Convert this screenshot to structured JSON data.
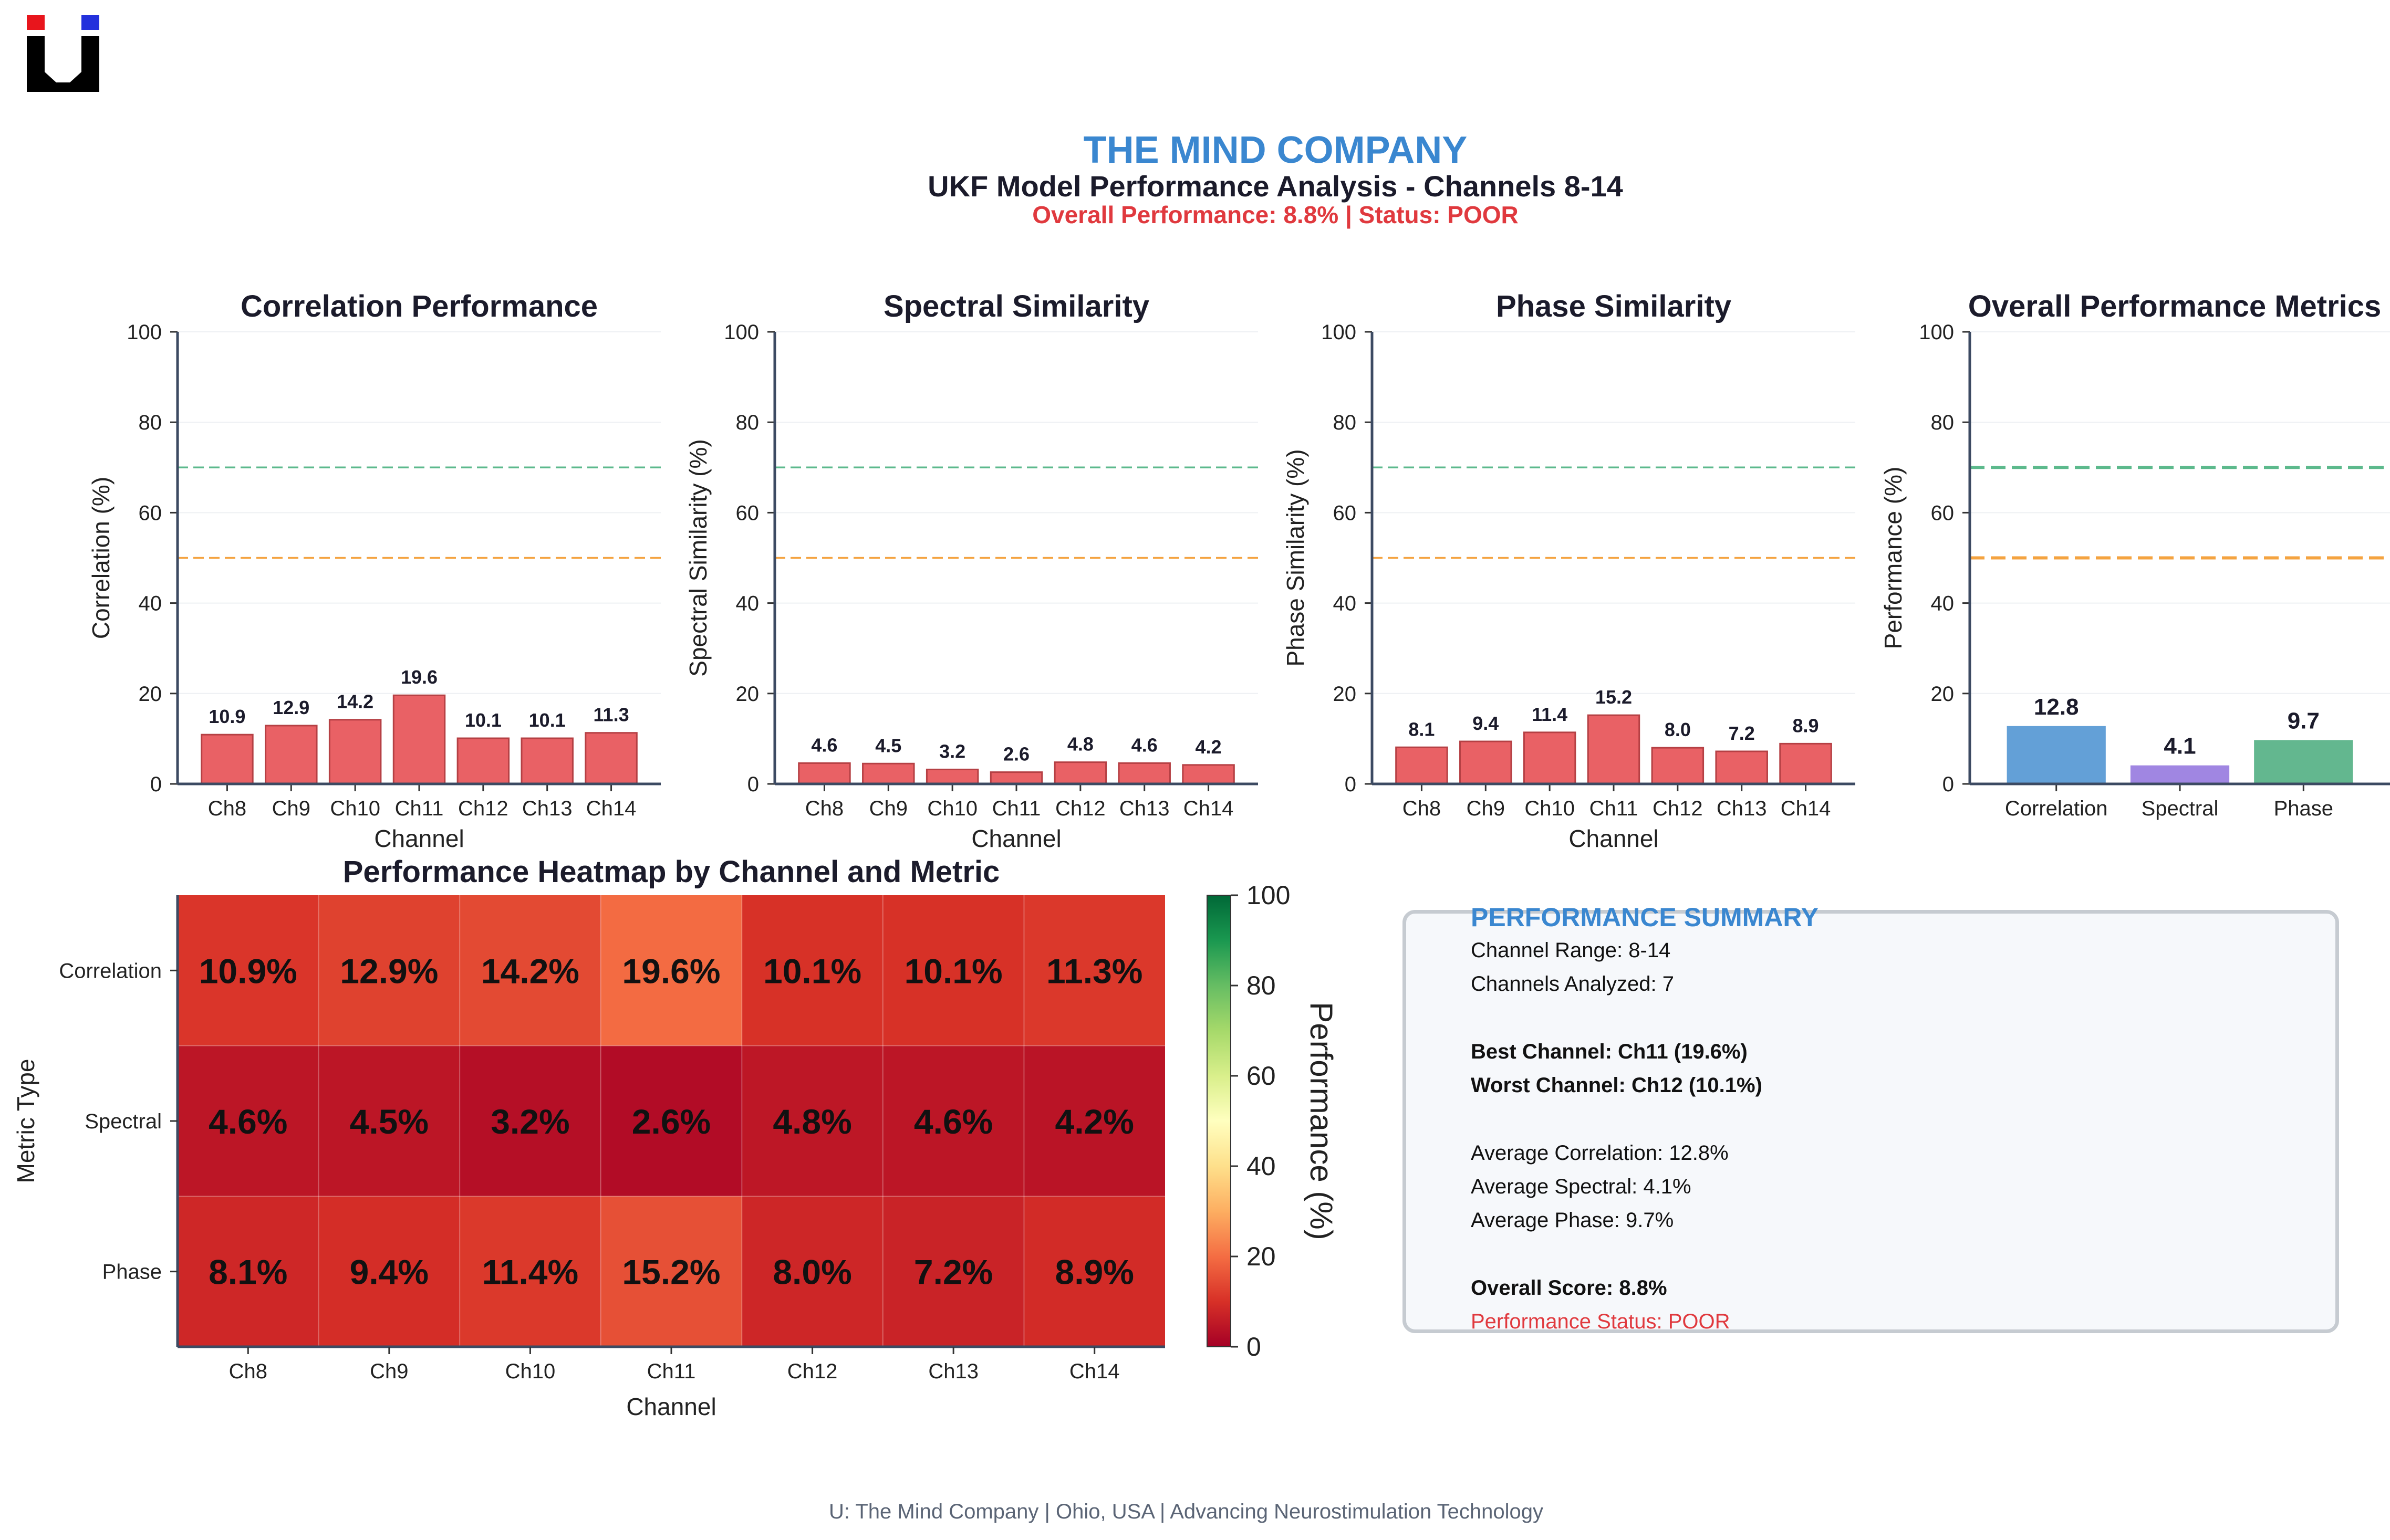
{
  "header": {
    "company": "THE MIND COMPANY",
    "title": "UKF Model Performance Analysis - Channels 8-14",
    "status_line": "Overall Performance: 8.8% | Status: POOR"
  },
  "colors": {
    "brand_blue": "#3a87d0",
    "status_red": "#e0393e",
    "bar_red": "#e8595d",
    "good_line": "#5cb98c",
    "fair_line": "#f4a340",
    "correlation_bar": "#5b9bd5",
    "spectral_bar": "#9b7fe0",
    "phase_bar": "#5bb389"
  },
  "chart_data": [
    {
      "type": "bar",
      "title": "Correlation Performance",
      "xlabel": "Channel",
      "ylabel": "Correlation (%)",
      "categories": [
        "Ch8",
        "Ch9",
        "Ch10",
        "Ch11",
        "Ch12",
        "Ch13",
        "Ch14"
      ],
      "values": [
        10.9,
        12.9,
        14.2,
        19.6,
        10.1,
        10.1,
        11.3
      ],
      "value_labels": [
        "10.9",
        "12.9",
        "14.2",
        "19.6",
        "10.1",
        "10.1",
        "11.3"
      ],
      "ylim": [
        0,
        100
      ],
      "yticks": [
        "0",
        "20",
        "40",
        "60",
        "80",
        "100"
      ],
      "reference_lines": [
        70,
        50
      ]
    },
    {
      "type": "bar",
      "title": "Spectral Similarity",
      "xlabel": "Channel",
      "ylabel": "Spectral Similarity (%)",
      "categories": [
        "Ch8",
        "Ch9",
        "Ch10",
        "Ch11",
        "Ch12",
        "Ch13",
        "Ch14"
      ],
      "values": [
        4.6,
        4.5,
        3.2,
        2.6,
        4.8,
        4.6,
        4.2
      ],
      "value_labels": [
        "4.6",
        "4.5",
        "3.2",
        "2.6",
        "4.8",
        "4.6",
        "4.2"
      ],
      "ylim": [
        0,
        100
      ],
      "yticks": [
        "0",
        "20",
        "40",
        "60",
        "80",
        "100"
      ],
      "reference_lines": [
        70,
        50
      ]
    },
    {
      "type": "bar",
      "title": "Phase Similarity",
      "xlabel": "Channel",
      "ylabel": "Phase Similarity (%)",
      "categories": [
        "Ch8",
        "Ch9",
        "Ch10",
        "Ch11",
        "Ch12",
        "Ch13",
        "Ch14"
      ],
      "values": [
        8.1,
        9.4,
        11.4,
        15.2,
        8.0,
        7.2,
        8.9
      ],
      "value_labels": [
        "8.1",
        "9.4",
        "11.4",
        "15.2",
        "8.0",
        "7.2",
        "8.9"
      ],
      "ylim": [
        0,
        100
      ],
      "yticks": [
        "0",
        "20",
        "40",
        "60",
        "80",
        "100"
      ],
      "reference_lines": [
        70,
        50
      ]
    },
    {
      "type": "bar",
      "title": "Overall Performance Metrics",
      "xlabel": "",
      "ylabel": "Performance (%)",
      "categories": [
        "Correlation",
        "Spectral",
        "Phase"
      ],
      "values": [
        12.8,
        4.1,
        9.7
      ],
      "value_labels": [
        "12.8",
        "4.1",
        "9.7"
      ],
      "ylim": [
        0,
        100
      ],
      "yticks": [
        "0",
        "20",
        "40",
        "60",
        "80",
        "100"
      ],
      "reference_lines": [
        70,
        50
      ]
    },
    {
      "type": "heatmap",
      "title": "Performance Heatmap by Channel and Metric",
      "xlabel": "Channel",
      "ylabel": "Metric Type",
      "x_categories": [
        "Ch8",
        "Ch9",
        "Ch10",
        "Ch11",
        "Ch12",
        "Ch13",
        "Ch14"
      ],
      "y_categories": [
        "Correlation",
        "Spectral",
        "Phase"
      ],
      "values": [
        [
          10.9,
          12.9,
          14.2,
          19.6,
          10.1,
          10.1,
          11.3
        ],
        [
          4.6,
          4.5,
          3.2,
          2.6,
          4.8,
          4.6,
          4.2
        ],
        [
          8.1,
          9.4,
          11.4,
          15.2,
          8.0,
          7.2,
          8.9
        ]
      ],
      "cell_labels": [
        [
          "10.9%",
          "12.9%",
          "14.2%",
          "19.6%",
          "10.1%",
          "10.1%",
          "11.3%"
        ],
        [
          "4.6%",
          "4.5%",
          "3.2%",
          "2.6%",
          "4.8%",
          "4.6%",
          "4.2%"
        ],
        [
          "8.1%",
          "9.4%",
          "11.4%",
          "15.2%",
          "8.0%",
          "7.2%",
          "8.9%"
        ]
      ],
      "colorbar": {
        "label": "Performance (%)",
        "range": [
          0,
          100
        ],
        "ticks": [
          "0",
          "20",
          "40",
          "60",
          "80",
          "100"
        ]
      }
    }
  ],
  "summary": {
    "title": "PERFORMANCE SUMMARY",
    "channel_range": "Channel Range: 8-14",
    "channels_analyzed": "Channels Analyzed: 7",
    "best_channel": "Best Channel: Ch11 (19.6%)",
    "worst_channel": "Worst Channel: Ch12 (10.1%)",
    "avg_correlation": "Average Correlation: 12.8%",
    "avg_spectral": "Average Spectral: 4.1%",
    "avg_phase": "Average Phase: 9.7%",
    "overall_score": "Overall Score: 8.8%",
    "performance_status": "Performance Status: POOR"
  },
  "footer": {
    "text": "U: The Mind Company | Ohio, USA | Advancing Neurostimulation Technology"
  }
}
